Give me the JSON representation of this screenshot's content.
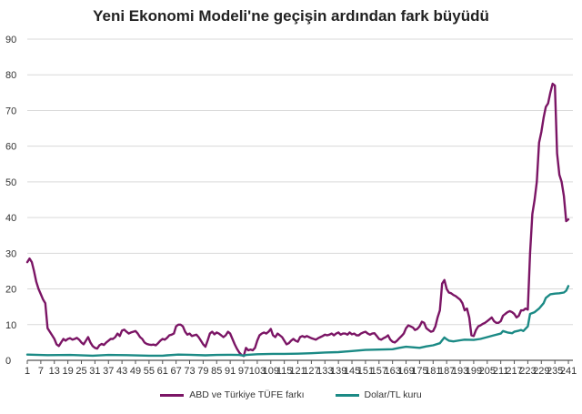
{
  "chart_data": {
    "type": "line",
    "title": "Yeni Ekonomi Modeli'ne geçişin ardından fark büyüdü",
    "xlabel": "",
    "ylabel": "",
    "xlim": [
      1,
      243
    ],
    "ylim": [
      0,
      90
    ],
    "y_ticks": [
      0,
      10,
      20,
      30,
      40,
      50,
      60,
      70,
      80,
      90
    ],
    "x_ticks": [
      1,
      7,
      13,
      19,
      25,
      31,
      37,
      43,
      49,
      55,
      61,
      67,
      73,
      79,
      85,
      91,
      97,
      103,
      109,
      115,
      121,
      127,
      133,
      139,
      145,
      151,
      157,
      163,
      169,
      175,
      181,
      187,
      193,
      199,
      205,
      211,
      217,
      223,
      229,
      235,
      241
    ],
    "grid": "horizontal",
    "legend_position": "bottom",
    "series": [
      {
        "name": "ABD ve Türkiye TÜFE farkı",
        "color": "#7b1565",
        "points": [
          [
            1,
            27.5
          ],
          [
            2,
            28.5
          ],
          [
            3,
            27.5
          ],
          [
            4,
            25
          ],
          [
            5,
            22
          ],
          [
            6,
            20
          ],
          [
            7,
            18.5
          ],
          [
            8,
            17
          ],
          [
            9,
            16
          ],
          [
            10,
            9
          ],
          [
            11,
            8
          ],
          [
            12,
            7
          ],
          [
            13,
            6
          ],
          [
            14,
            4.5
          ],
          [
            15,
            4
          ],
          [
            16,
            5
          ],
          [
            17,
            6
          ],
          [
            18,
            5.5
          ],
          [
            19,
            6
          ],
          [
            20,
            6.2
          ],
          [
            21,
            5.8
          ],
          [
            22,
            6
          ],
          [
            23,
            6.3
          ],
          [
            24,
            5.8
          ],
          [
            25,
            5
          ],
          [
            26,
            4.5
          ],
          [
            27,
            5.5
          ],
          [
            28,
            6.5
          ],
          [
            29,
            5
          ],
          [
            30,
            4
          ],
          [
            31,
            3.5
          ],
          [
            32,
            3.3
          ],
          [
            33,
            4.2
          ],
          [
            34,
            4.6
          ],
          [
            35,
            4.3
          ],
          [
            36,
            5
          ],
          [
            37,
            5.5
          ],
          [
            38,
            6
          ],
          [
            39,
            6
          ],
          [
            40,
            6.5
          ],
          [
            41,
            7.5
          ],
          [
            42,
            6.8
          ],
          [
            43,
            8.3
          ],
          [
            44,
            8.6
          ],
          [
            45,
            8
          ],
          [
            46,
            7.5
          ],
          [
            47,
            7.8
          ],
          [
            48,
            8
          ],
          [
            49,
            8.2
          ],
          [
            50,
            7.5
          ],
          [
            51,
            6.5
          ],
          [
            52,
            6
          ],
          [
            53,
            5
          ],
          [
            54,
            4.6
          ],
          [
            55,
            4.4
          ],
          [
            56,
            4.3
          ],
          [
            57,
            4.4
          ],
          [
            58,
            4.2
          ],
          [
            59,
            4.8
          ],
          [
            60,
            5.5
          ],
          [
            61,
            6
          ],
          [
            62,
            5.8
          ],
          [
            63,
            6.3
          ],
          [
            64,
            7
          ],
          [
            65,
            7.2
          ],
          [
            66,
            7.5
          ],
          [
            67,
            9.5
          ],
          [
            68,
            10
          ],
          [
            69,
            10
          ],
          [
            70,
            9.5
          ],
          [
            71,
            8
          ],
          [
            72,
            7.2
          ],
          [
            73,
            7.5
          ],
          [
            74,
            6.8
          ],
          [
            75,
            7
          ],
          [
            76,
            7.2
          ],
          [
            77,
            6.5
          ],
          [
            78,
            5.5
          ],
          [
            79,
            4.5
          ],
          [
            80,
            3.8
          ],
          [
            81,
            5.5
          ],
          [
            82,
            7.5
          ],
          [
            83,
            8
          ],
          [
            84,
            7.3
          ],
          [
            85,
            7.8
          ],
          [
            86,
            7.5
          ],
          [
            87,
            7
          ],
          [
            88,
            6.5
          ],
          [
            89,
            7
          ],
          [
            90,
            8
          ],
          [
            91,
            7.5
          ],
          [
            92,
            6
          ],
          [
            93,
            4.5
          ],
          [
            94,
            3.2
          ],
          [
            95,
            2.2
          ],
          [
            96,
            1.5
          ],
          [
            97,
            1.2
          ],
          [
            98,
            3.5
          ],
          [
            99,
            2.8
          ],
          [
            100,
            3
          ],
          [
            101,
            2.8
          ],
          [
            102,
            3.5
          ],
          [
            103,
            5.5
          ],
          [
            104,
            7
          ],
          [
            105,
            7.5
          ],
          [
            106,
            7.8
          ],
          [
            107,
            7.5
          ],
          [
            108,
            8
          ],
          [
            109,
            8.8
          ],
          [
            110,
            7
          ],
          [
            111,
            6.5
          ],
          [
            112,
            7.5
          ],
          [
            113,
            7
          ],
          [
            114,
            6.5
          ],
          [
            115,
            5.5
          ],
          [
            116,
            4.5
          ],
          [
            117,
            4.8
          ],
          [
            118,
            5.5
          ],
          [
            119,
            6
          ],
          [
            120,
            5.5
          ],
          [
            121,
            5.2
          ],
          [
            122,
            6.5
          ],
          [
            123,
            6.8
          ],
          [
            124,
            6.5
          ],
          [
            125,
            6.8
          ],
          [
            126,
            6.5
          ],
          [
            127,
            6.2
          ],
          [
            128,
            6
          ],
          [
            129,
            5.8
          ],
          [
            130,
            6.2
          ],
          [
            131,
            6.5
          ],
          [
            132,
            6.8
          ],
          [
            133,
            7.2
          ],
          [
            134,
            7
          ],
          [
            135,
            7.2
          ],
          [
            136,
            7.5
          ],
          [
            137,
            7
          ],
          [
            138,
            7.5
          ],
          [
            139,
            7.8
          ],
          [
            140,
            7.2
          ],
          [
            141,
            7.5
          ],
          [
            142,
            7.5
          ],
          [
            143,
            7.2
          ],
          [
            144,
            7.8
          ],
          [
            145,
            7.3
          ],
          [
            146,
            7.5
          ],
          [
            147,
            7
          ],
          [
            148,
            7
          ],
          [
            149,
            7.5
          ],
          [
            150,
            7.8
          ],
          [
            151,
            8
          ],
          [
            152,
            7.5
          ],
          [
            153,
            7.2
          ],
          [
            154,
            7.5
          ],
          [
            155,
            7.6
          ],
          [
            156,
            6.8
          ],
          [
            157,
            6
          ],
          [
            158,
            5.8
          ],
          [
            159,
            6.2
          ],
          [
            160,
            6.5
          ],
          [
            161,
            7
          ],
          [
            162,
            5.8
          ],
          [
            163,
            5.2
          ],
          [
            164,
            5
          ],
          [
            165,
            5.5
          ],
          [
            166,
            6.2
          ],
          [
            167,
            6.8
          ],
          [
            168,
            7.5
          ],
          [
            169,
            9
          ],
          [
            170,
            9.8
          ],
          [
            171,
            9.5
          ],
          [
            172,
            9.2
          ],
          [
            173,
            8.5
          ],
          [
            174,
            8.8
          ],
          [
            175,
            9.5
          ],
          [
            176,
            10.8
          ],
          [
            177,
            10.5
          ],
          [
            178,
            9
          ],
          [
            179,
            8.5
          ],
          [
            180,
            8
          ],
          [
            181,
            8.2
          ],
          [
            182,
            9.5
          ],
          [
            183,
            12
          ],
          [
            184,
            14
          ],
          [
            185,
            21.5
          ],
          [
            186,
            22.5
          ],
          [
            187,
            20
          ],
          [
            188,
            19
          ],
          [
            189,
            18.8
          ],
          [
            190,
            18.3
          ],
          [
            191,
            18
          ],
          [
            192,
            17.5
          ],
          [
            193,
            17
          ],
          [
            194,
            16
          ],
          [
            195,
            14
          ],
          [
            196,
            14.5
          ],
          [
            197,
            12
          ],
          [
            198,
            7
          ],
          [
            199,
            6.8
          ],
          [
            200,
            8.5
          ],
          [
            201,
            9.5
          ],
          [
            202,
            9.8
          ],
          [
            203,
            10.2
          ],
          [
            204,
            10.5
          ],
          [
            205,
            11
          ],
          [
            206,
            11.5
          ],
          [
            207,
            12
          ],
          [
            208,
            11
          ],
          [
            209,
            10.5
          ],
          [
            210,
            10.5
          ],
          [
            211,
            11
          ],
          [
            212,
            12.5
          ],
          [
            213,
            13
          ],
          [
            214,
            13.5
          ],
          [
            215,
            13.8
          ],
          [
            216,
            13.5
          ],
          [
            217,
            13
          ],
          [
            218,
            12
          ],
          [
            219,
            12.5
          ],
          [
            220,
            14
          ],
          [
            221,
            14
          ],
          [
            222,
            14.5
          ],
          [
            223,
            14.2
          ],
          [
            224,
            30
          ],
          [
            225,
            41
          ],
          [
            226,
            45
          ],
          [
            227,
            50
          ],
          [
            228,
            61
          ],
          [
            229,
            64
          ],
          [
            230,
            68
          ],
          [
            231,
            71
          ],
          [
            232,
            72
          ],
          [
            233,
            75
          ],
          [
            234,
            77.5
          ],
          [
            235,
            77
          ],
          [
            236,
            58
          ],
          [
            237,
            52
          ],
          [
            238,
            50
          ],
          [
            239,
            46
          ],
          [
            240,
            39
          ],
          [
            241,
            39.5
          ]
        ]
      },
      {
        "name": "Dolar/TL kuru",
        "color": "#1b8a85",
        "points": [
          [
            1,
            1.6
          ],
          [
            10,
            1.45
          ],
          [
            20,
            1.5
          ],
          [
            30,
            1.3
          ],
          [
            37,
            1.5
          ],
          [
            45,
            1.45
          ],
          [
            55,
            1.3
          ],
          [
            61,
            1.3
          ],
          [
            63,
            1.4
          ],
          [
            68,
            1.6
          ],
          [
            73,
            1.55
          ],
          [
            80,
            1.4
          ],
          [
            85,
            1.5
          ],
          [
            90,
            1.55
          ],
          [
            95,
            1.5
          ],
          [
            97,
            1.3
          ],
          [
            98,
            1.5
          ],
          [
            103,
            1.7
          ],
          [
            110,
            1.8
          ],
          [
            115,
            1.8
          ],
          [
            121,
            1.85
          ],
          [
            127,
            2
          ],
          [
            133,
            2.2
          ],
          [
            139,
            2.3
          ],
          [
            145,
            2.6
          ],
          [
            151,
            2.9
          ],
          [
            157,
            3
          ],
          [
            163,
            3.1
          ],
          [
            166,
            3.5
          ],
          [
            169,
            3.8
          ],
          [
            175,
            3.5
          ],
          [
            178,
            3.9
          ],
          [
            181,
            4.2
          ],
          [
            184,
            4.8
          ],
          [
            185,
            5.6
          ],
          [
            186,
            6.4
          ],
          [
            187,
            5.9
          ],
          [
            188,
            5.5
          ],
          [
            190,
            5.3
          ],
          [
            193,
            5.6
          ],
          [
            195,
            5.8
          ],
          [
            199,
            5.7
          ],
          [
            202,
            6
          ],
          [
            205,
            6.5
          ],
          [
            208,
            7
          ],
          [
            211,
            7.5
          ],
          [
            212,
            8.2
          ],
          [
            214,
            7.8
          ],
          [
            216,
            7.6
          ],
          [
            217,
            8
          ],
          [
            219,
            8.3
          ],
          [
            220,
            8.5
          ],
          [
            221,
            8.2
          ],
          [
            223,
            9.5
          ],
          [
            224,
            13
          ],
          [
            226,
            13.5
          ],
          [
            228,
            14.5
          ],
          [
            230,
            16
          ],
          [
            231,
            17.5
          ],
          [
            233,
            18.5
          ],
          [
            235,
            18.7
          ],
          [
            237,
            18.8
          ],
          [
            239,
            19
          ],
          [
            240,
            19.5
          ],
          [
            241,
            20.8
          ]
        ]
      }
    ]
  }
}
